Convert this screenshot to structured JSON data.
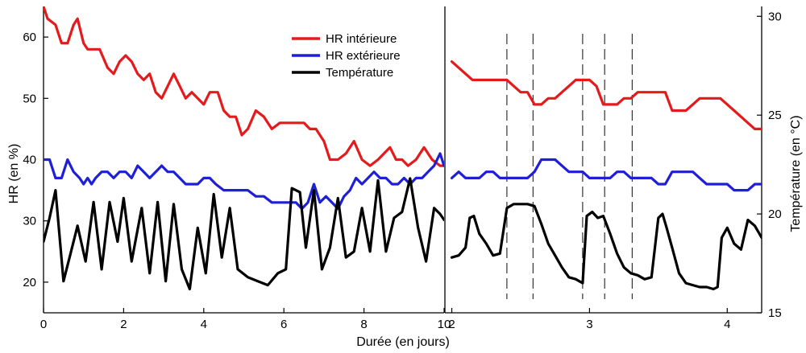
{
  "chart_data": [
    {
      "panel": "left",
      "type": "line",
      "xlabel": "Durée (en jours)",
      "ylabel": "HR (en %)",
      "xlim": [
        0,
        10
      ],
      "ylim": [
        15,
        65
      ],
      "xticks": [
        0,
        2,
        4,
        6,
        8,
        10
      ],
      "yticks": [
        20,
        30,
        40,
        50,
        60
      ],
      "legend": {
        "placement": "top-right",
        "entries": [
          {
            "label": "HR intérieure",
            "color": "#e41a1c"
          },
          {
            "label": "HR extérieure",
            "color": "#1f1fd6"
          },
          {
            "label": "Température",
            "color": "#000000"
          }
        ]
      },
      "series": [
        {
          "name": "HR intérieure",
          "axis": "left",
          "color": "#e41a1c",
          "x": [
            0,
            0.1,
            0.3,
            0.45,
            0.6,
            0.75,
            0.85,
            1.0,
            1.1,
            1.2,
            1.4,
            1.6,
            1.75,
            1.9,
            2.05,
            2.2,
            2.35,
            2.5,
            2.65,
            2.8,
            2.95,
            3.1,
            3.25,
            3.4,
            3.55,
            3.7,
            3.85,
            4.0,
            4.15,
            4.35,
            4.5,
            4.65,
            4.8,
            4.95,
            5.1,
            5.3,
            5.5,
            5.7,
            5.9,
            6.1,
            6.3,
            6.5,
            6.65,
            6.8,
            7.0,
            7.15,
            7.35,
            7.55,
            7.75,
            7.95,
            8.15,
            8.35,
            8.5,
            8.65,
            8.8,
            8.95,
            9.1,
            9.3,
            9.5,
            9.7,
            9.9,
            10.0
          ],
          "values": [
            65,
            63,
            62,
            59,
            59,
            62,
            63,
            59,
            58,
            58,
            58,
            55,
            54,
            56,
            57,
            56,
            54,
            53,
            54,
            51,
            50,
            52,
            54,
            52,
            50,
            51,
            50,
            49,
            51,
            51,
            48,
            47,
            47,
            44,
            45,
            48,
            47,
            45,
            46,
            46,
            46,
            46,
            45,
            45,
            43,
            40,
            40,
            41,
            43,
            40,
            39,
            40,
            41,
            42,
            40,
            40,
            39,
            40,
            42,
            40,
            39,
            39
          ]
        },
        {
          "name": "HR extérieure",
          "axis": "left",
          "color": "#1f1fd6",
          "x": [
            0,
            0.15,
            0.3,
            0.45,
            0.6,
            0.75,
            0.9,
            1.0,
            1.1,
            1.2,
            1.3,
            1.45,
            1.6,
            1.75,
            1.9,
            2.05,
            2.2,
            2.35,
            2.5,
            2.65,
            2.8,
            2.95,
            3.1,
            3.25,
            3.4,
            3.55,
            3.7,
            3.85,
            4.0,
            4.15,
            4.3,
            4.5,
            4.7,
            4.9,
            5.1,
            5.3,
            5.5,
            5.7,
            5.9,
            6.1,
            6.3,
            6.45,
            6.6,
            6.75,
            6.9,
            7.05,
            7.2,
            7.35,
            7.5,
            7.65,
            7.8,
            7.95,
            8.1,
            8.25,
            8.4,
            8.55,
            8.7,
            8.85,
            9.0,
            9.15,
            9.3,
            9.45,
            9.6,
            9.75,
            9.9,
            10.0
          ],
          "values": [
            40,
            40,
            37,
            37,
            40,
            38,
            37,
            36,
            37,
            36,
            37,
            38,
            38,
            37,
            38,
            38,
            37,
            39,
            38,
            37,
            38,
            39,
            38,
            38,
            37,
            36,
            36,
            36,
            37,
            37,
            36,
            35,
            35,
            35,
            35,
            34,
            34,
            33,
            33,
            33,
            33,
            32,
            33,
            36,
            33,
            34,
            33,
            32,
            34,
            35,
            37,
            36,
            37,
            38,
            37,
            37,
            36,
            36,
            37,
            36,
            37,
            37,
            38,
            39,
            41,
            39
          ]
        },
        {
          "name": "Température",
          "axis": "right",
          "color": "#000000",
          "x": [
            0,
            0.15,
            0.3,
            0.5,
            0.65,
            0.85,
            1.05,
            1.25,
            1.45,
            1.65,
            1.85,
            2.0,
            2.2,
            2.45,
            2.65,
            2.85,
            3.05,
            3.25,
            3.45,
            3.65,
            3.85,
            4.05,
            4.25,
            4.45,
            4.65,
            4.85,
            5.1,
            5.35,
            5.6,
            5.85,
            6.05,
            6.2,
            6.4,
            6.55,
            6.75,
            6.95,
            7.15,
            7.35,
            7.55,
            7.75,
            7.95,
            8.15,
            8.35,
            8.55,
            8.75,
            8.95,
            9.15,
            9.35,
            9.55,
            9.75,
            9.9,
            10.0
          ],
          "values": [
            18.6,
            19.8,
            21.2,
            16.6,
            17.8,
            19.4,
            17.6,
            20.6,
            17.2,
            20.6,
            18.6,
            20.8,
            17.6,
            20.3,
            17.0,
            20.6,
            16.6,
            20.5,
            17.2,
            16.2,
            19.3,
            17.0,
            21.0,
            17.8,
            20.3,
            17.2,
            16.8,
            16.6,
            16.4,
            17.0,
            17.2,
            21.3,
            21.1,
            18.3,
            21.2,
            17.2,
            18.3,
            20.8,
            17.8,
            18.1,
            20.3,
            18.1,
            21.7,
            18.1,
            19.8,
            20.1,
            21.8,
            19.3,
            17.6,
            20.3,
            20.0,
            19.7
          ]
        }
      ]
    },
    {
      "panel": "right",
      "type": "line",
      "xlabel": "",
      "ylabel": "Température (en °C)",
      "xlim": [
        1.95,
        4.25
      ],
      "ylim_left": [
        15,
        65
      ],
      "ylim_right": [
        15,
        30.5
      ],
      "xticks": [
        2,
        3,
        4
      ],
      "yticks_right": [
        15,
        20,
        25,
        30
      ],
      "vertical_markers_x": [
        2.4,
        2.59,
        2.95,
        3.11,
        3.31
      ],
      "series": [
        {
          "name": "HR intérieure",
          "axis": "left",
          "color": "#e41a1c",
          "x": [
            2.0,
            2.05,
            2.1,
            2.15,
            2.2,
            2.25,
            2.3,
            2.35,
            2.4,
            2.45,
            2.5,
            2.55,
            2.6,
            2.65,
            2.7,
            2.75,
            2.8,
            2.85,
            2.9,
            2.95,
            3.0,
            3.05,
            3.1,
            3.15,
            3.2,
            3.25,
            3.3,
            3.35,
            3.4,
            3.45,
            3.5,
            3.55,
            3.6,
            3.65,
            3.7,
            3.75,
            3.8,
            3.85,
            3.9,
            3.95,
            4.0,
            4.05,
            4.1,
            4.15,
            4.2,
            4.25
          ],
          "values": [
            56,
            55,
            54,
            53,
            53,
            53,
            53,
            53,
            53,
            52,
            51,
            51,
            49,
            49,
            50,
            50,
            51,
            52,
            53,
            53,
            53,
            52,
            49,
            49,
            49,
            50,
            50,
            51,
            51,
            51,
            51,
            51,
            48,
            48,
            48,
            49,
            50,
            50,
            50,
            50,
            49,
            48,
            47,
            46,
            45,
            45
          ]
        },
        {
          "name": "HR extérieure",
          "axis": "left",
          "color": "#1f1fd6",
          "x": [
            2.0,
            2.05,
            2.1,
            2.15,
            2.2,
            2.25,
            2.3,
            2.35,
            2.4,
            2.45,
            2.5,
            2.55,
            2.6,
            2.65,
            2.7,
            2.75,
            2.8,
            2.85,
            2.9,
            2.95,
            3.0,
            3.05,
            3.1,
            3.15,
            3.2,
            3.25,
            3.3,
            3.35,
            3.4,
            3.45,
            3.5,
            3.55,
            3.6,
            3.65,
            3.7,
            3.75,
            3.8,
            3.85,
            3.9,
            3.95,
            4.0,
            4.05,
            4.1,
            4.15,
            4.2,
            4.25
          ],
          "values": [
            37,
            38,
            37,
            37,
            37,
            38,
            38,
            37,
            37,
            37,
            37,
            37,
            38,
            40,
            40,
            40,
            39,
            38,
            38,
            38,
            37,
            37,
            37,
            37,
            38,
            38,
            37,
            37,
            37,
            37,
            36,
            36,
            38,
            38,
            38,
            38,
            37,
            36,
            36,
            36,
            36,
            35,
            35,
            35,
            36,
            36
          ]
        },
        {
          "name": "Température",
          "axis": "right",
          "color": "#000000",
          "x": [
            2.0,
            2.05,
            2.1,
            2.13,
            2.16,
            2.2,
            2.25,
            2.3,
            2.35,
            2.4,
            2.45,
            2.5,
            2.55,
            2.6,
            2.65,
            2.7,
            2.75,
            2.8,
            2.85,
            2.9,
            2.95,
            2.98,
            3.02,
            3.06,
            3.1,
            3.15,
            3.2,
            3.25,
            3.3,
            3.35,
            3.4,
            3.45,
            3.5,
            3.53,
            3.56,
            3.6,
            3.65,
            3.7,
            3.75,
            3.8,
            3.85,
            3.9,
            3.93,
            3.96,
            4.0,
            4.05,
            4.1,
            4.15,
            4.2,
            4.25
          ],
          "values": [
            17.8,
            17.9,
            18.3,
            19.8,
            19.9,
            19.0,
            18.5,
            17.9,
            18.0,
            20.3,
            20.5,
            20.5,
            20.5,
            20.4,
            19.5,
            18.5,
            17.9,
            17.3,
            16.8,
            16.7,
            16.5,
            19.9,
            20.1,
            19.8,
            19.9,
            19.0,
            18.0,
            17.3,
            17.0,
            16.9,
            16.7,
            16.8,
            19.8,
            20.0,
            19.3,
            18.3,
            17.0,
            16.5,
            16.4,
            16.3,
            16.3,
            16.2,
            16.3,
            18.8,
            19.3,
            18.5,
            18.2,
            19.7,
            19.4,
            18.8
          ]
        }
      ]
    }
  ]
}
